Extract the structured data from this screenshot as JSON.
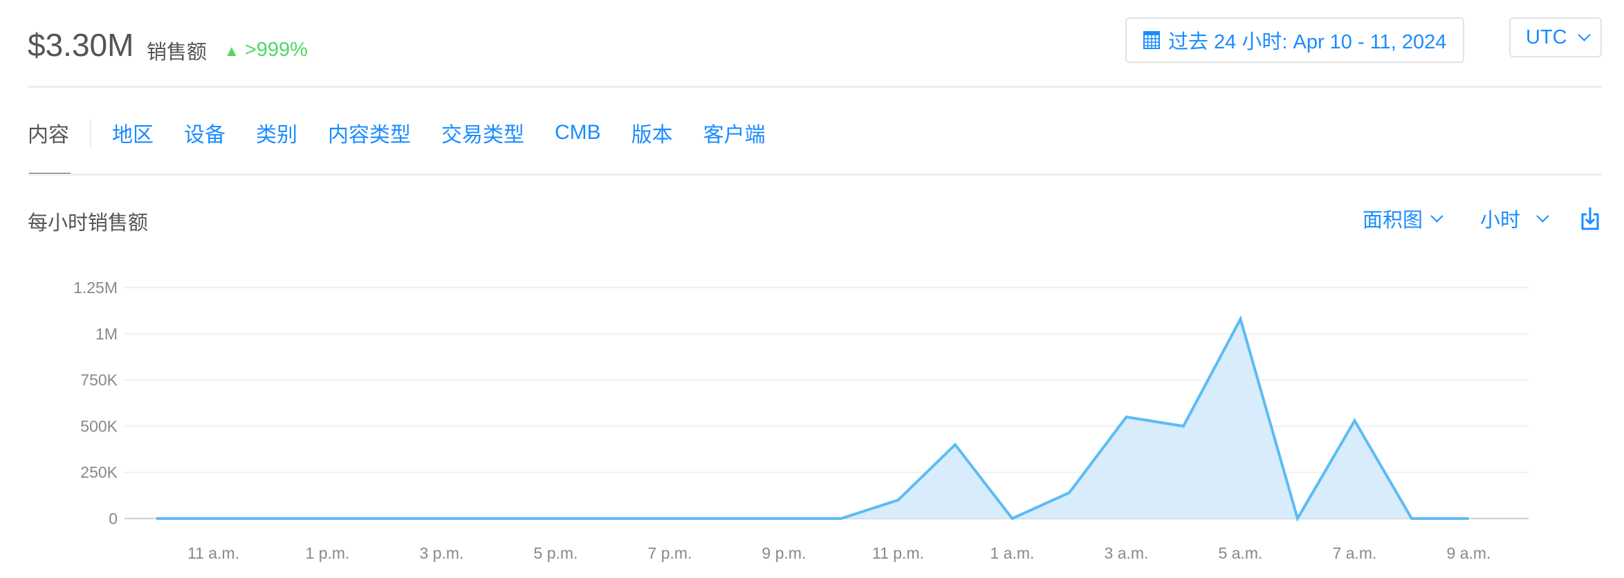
{
  "summary": {
    "total": "$3.30M",
    "label": "销售额",
    "delta": ">999%",
    "delta_direction": "up",
    "delta_color": "#4cd964"
  },
  "date_range": {
    "icon": "calendar-icon",
    "label": "过去 24 小时: Apr 10 - 11, 2024"
  },
  "timezone": {
    "label": "UTC"
  },
  "tabs": [
    {
      "label": "内容",
      "active": true
    },
    {
      "label": "地区"
    },
    {
      "label": "设备"
    },
    {
      "label": "类别"
    },
    {
      "label": "内容类型"
    },
    {
      "label": "交易类型"
    },
    {
      "label": "CMB"
    },
    {
      "label": "版本"
    },
    {
      "label": "客户端"
    }
  ],
  "chart_section": {
    "title": "每小时销售额",
    "chart_type_select": "面积图",
    "interval_select": "小时",
    "download_icon": "download-icon"
  },
  "colors": {
    "accent": "#1a8cff",
    "series_line": "#5bbcf5",
    "series_fill": "#d8ecfb"
  },
  "chart_data": {
    "type": "area",
    "title": "",
    "xlabel": "",
    "ylabel": "",
    "x": [
      "10 a.m.",
      "11 a.m.",
      "12 p.m.",
      "1 p.m.",
      "2 p.m.",
      "3 p.m.",
      "4 p.m.",
      "5 p.m.",
      "6 p.m.",
      "7 p.m.",
      "8 p.m.",
      "9 p.m.",
      "10 p.m.",
      "11 p.m.",
      "12 a.m.",
      "1 a.m.",
      "2 a.m.",
      "3 a.m.",
      "4 a.m.",
      "5 a.m.",
      "6 a.m.",
      "7 a.m.",
      "8 a.m.",
      "9 a.m."
    ],
    "values": [
      0,
      0,
      0,
      0,
      0,
      0,
      0,
      0,
      0,
      0,
      0,
      0,
      0,
      100000,
      400000,
      0,
      140000,
      550000,
      500000,
      1080000,
      0,
      530000,
      0,
      0
    ],
    "x_tick_labels": [
      "11 a.m.",
      "1 p.m.",
      "3 p.m.",
      "5 p.m.",
      "7 p.m.",
      "9 p.m.",
      "11 p.m.",
      "1 a.m.",
      "3 a.m.",
      "5 a.m.",
      "7 a.m.",
      "9 a.m."
    ],
    "y_ticks": [
      0,
      250000,
      500000,
      750000,
      1000000,
      1250000
    ],
    "y_tick_labels": [
      "0",
      "250K",
      "500K",
      "750K",
      "1M",
      "1.25M"
    ],
    "ylim": [
      0,
      1250000
    ],
    "grid": true,
    "legend": "none"
  }
}
